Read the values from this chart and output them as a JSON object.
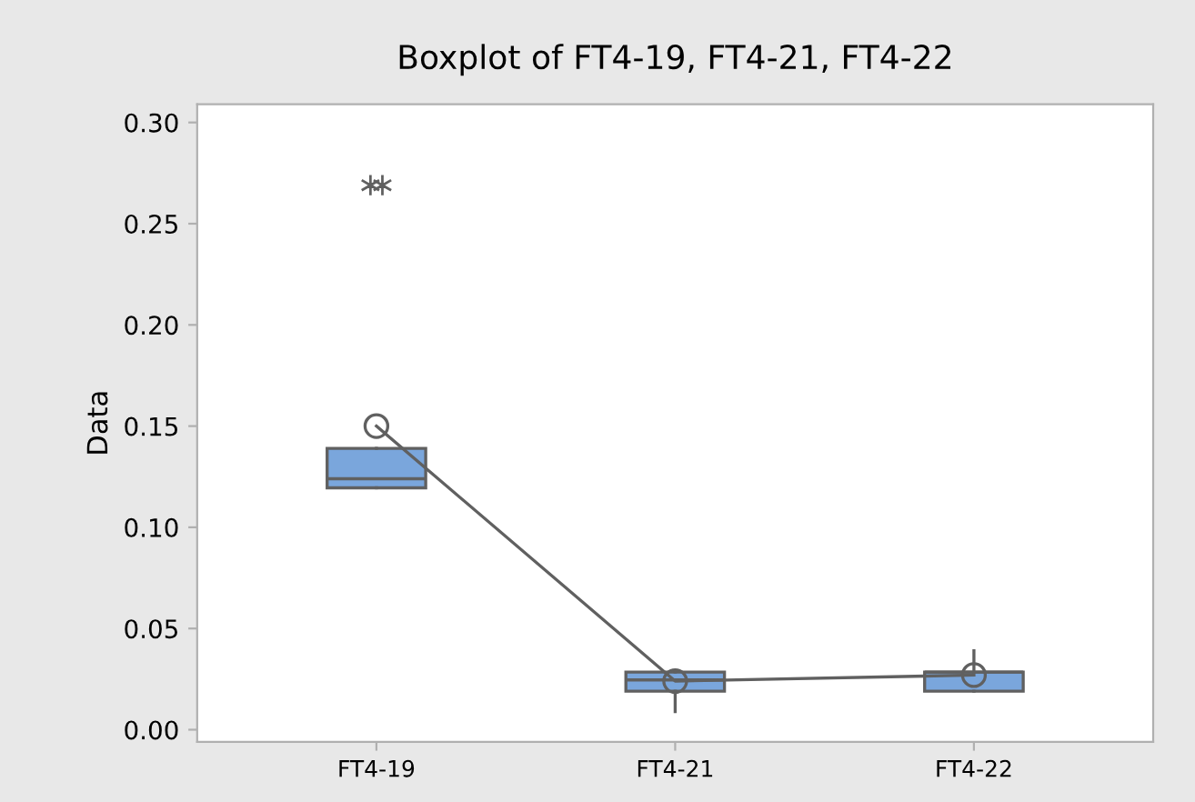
{
  "chart_data": {
    "type": "box",
    "title": "Boxplot of FT4-19, FT4-21, FT4-22",
    "ylabel": "Data",
    "categories": [
      "FT4-19",
      "FT4-21",
      "FT4-22"
    ],
    "color": "#7aa6dc",
    "boxes": [
      {
        "low": 0.1195,
        "q1": 0.1195,
        "median": 0.124,
        "q3": 0.139,
        "high": 0.139,
        "outliers": [
          0.269,
          0.269
        ]
      },
      {
        "low": 0.009,
        "q1": 0.019,
        "median": 0.0246,
        "q3": 0.0285,
        "high": 0.0285
      },
      {
        "low": 0.019,
        "q1": 0.019,
        "median": 0.0285,
        "q3": 0.0285,
        "high": 0.039
      }
    ],
    "series": [
      {
        "type": "line",
        "color": "#606060",
        "marker": "circle",
        "values": [
          0.15,
          0.024,
          0.027
        ]
      }
    ],
    "ylim": [
      -0.006,
      0.309
    ],
    "yticks": [
      {
        "value": 0,
        "label": "0.00"
      },
      {
        "value": 0.05,
        "label": "0.05"
      },
      {
        "value": 0.1,
        "label": "0.10"
      },
      {
        "value": 0.15,
        "label": "0.15"
      },
      {
        "value": 0.2,
        "label": "0.20"
      },
      {
        "value": 0.25,
        "label": "0.25"
      },
      {
        "value": 0.3,
        "label": "0.30"
      }
    ],
    "grid": false
  }
}
